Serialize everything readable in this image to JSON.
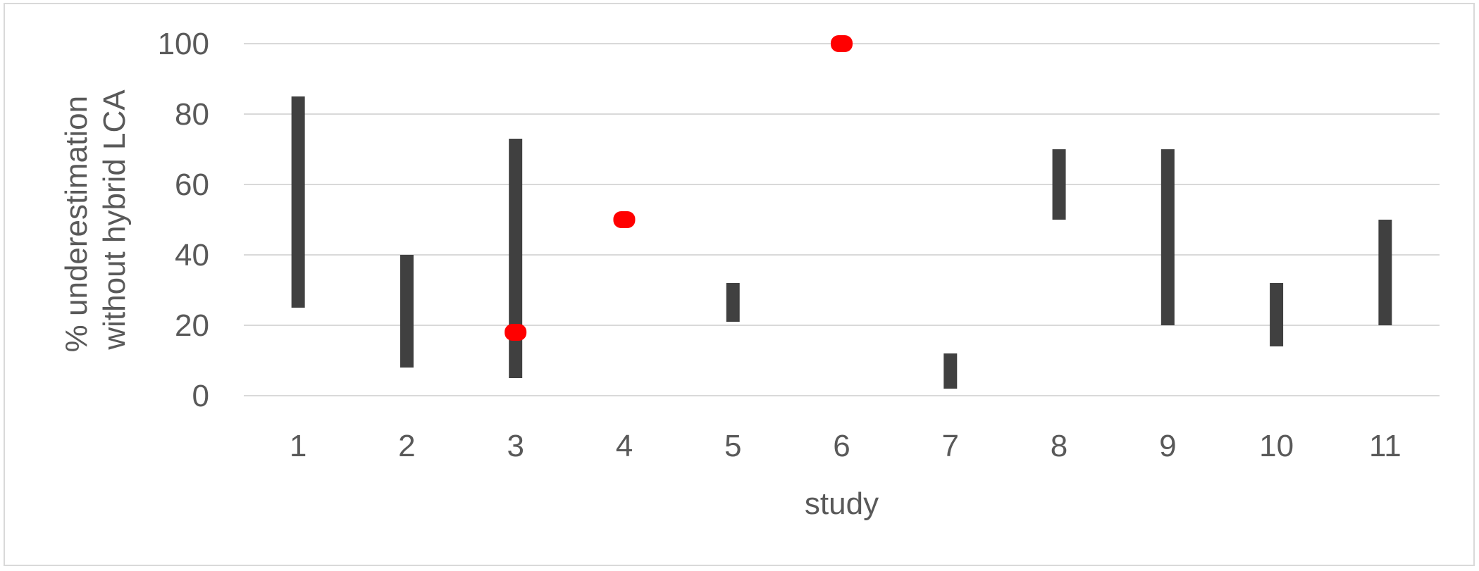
{
  "chart_data": {
    "type": "range-bar",
    "title": "",
    "xlabel": "study",
    "ylabel_lines": [
      "% underestimation",
      "without hybrid LCA"
    ],
    "categories": [
      "1",
      "2",
      "3",
      "4",
      "5",
      "6",
      "7",
      "8",
      "9",
      "10",
      "11"
    ],
    "ylim": [
      0,
      100
    ],
    "yticks": [
      0,
      20,
      40,
      60,
      80,
      100
    ],
    "ytick_labels": [
      "0",
      "20",
      "40",
      "60",
      "80",
      "100"
    ],
    "grid": true,
    "legend": "none",
    "series": [
      {
        "kind": "range",
        "color": "#404040",
        "values": [
          {
            "x": "1",
            "low": 25,
            "high": 85
          },
          {
            "x": "2",
            "low": 8,
            "high": 40
          },
          {
            "x": "3",
            "low": 5,
            "high": 73
          },
          {
            "x": "5",
            "low": 21,
            "high": 32
          },
          {
            "x": "7",
            "low": 2,
            "high": 12
          },
          {
            "x": "8",
            "low": 50,
            "high": 70
          },
          {
            "x": "9",
            "low": 20,
            "high": 70
          },
          {
            "x": "10",
            "low": 14,
            "high": 32
          },
          {
            "x": "11",
            "low": 20,
            "high": 50
          }
        ]
      },
      {
        "kind": "point",
        "color": "#ff0000",
        "values": [
          {
            "x": "3",
            "y": 18
          },
          {
            "x": "4",
            "y": 50
          },
          {
            "x": "6",
            "y": 100
          }
        ]
      }
    ],
    "colors": {
      "range_bar": "#404040",
      "point": "#ff0000",
      "grid": "#d9d9d9",
      "text": "#595959",
      "frame": "#d9d9d9"
    }
  }
}
